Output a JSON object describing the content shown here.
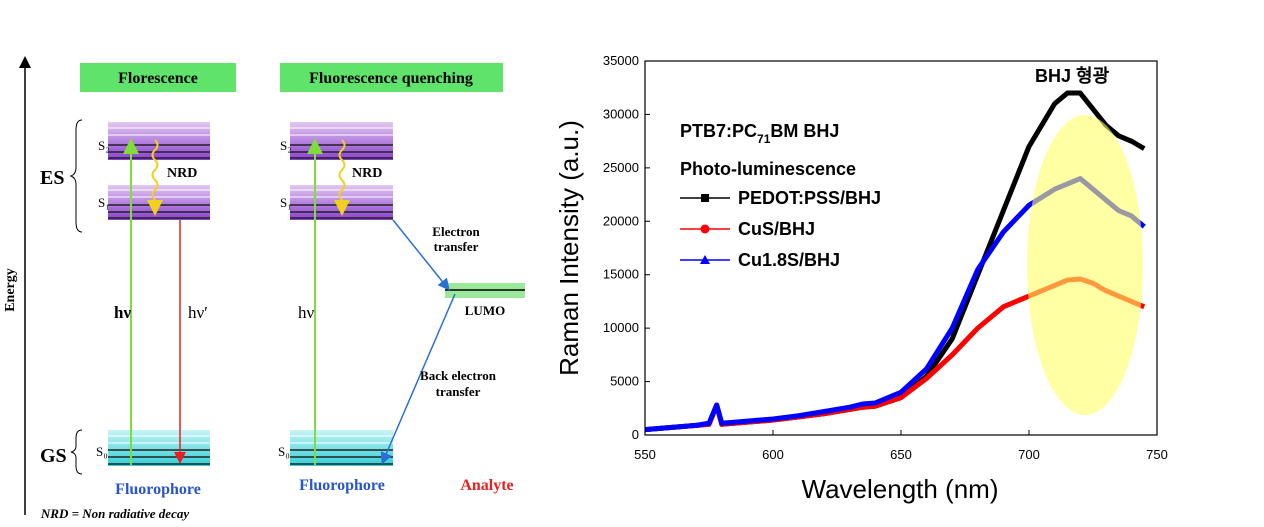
{
  "diagram": {
    "panel_titles": [
      "Florescence",
      "Fluorescence quenching"
    ],
    "energy_axis": "Energy",
    "states": {
      "excited": "ES",
      "ground": "GS"
    },
    "levels": {
      "s2": "S₂",
      "s1": "S₁",
      "s0": "S₀"
    },
    "nrd": "NRD",
    "absorption": "hν",
    "emission": "hν′",
    "electron_transfer": [
      "Electron",
      "transfer"
    ],
    "lumo": "LUMO",
    "back_transfer": [
      "Back electron",
      "transfer"
    ],
    "fluorophore": "Fluorophore",
    "analyte": "Analyte",
    "footnote": "NRD = Non radiative decay"
  },
  "chart_data": {
    "type": "line",
    "xlabel": "Wavelength (nm)",
    "ylabel": "Raman Intensity (a.u.)",
    "annotations": [
      "BHJ 형광",
      "Photo-luminescence"
    ],
    "label_parts": [
      "PTB7:PC",
      "71",
      "BM BHJ"
    ],
    "x": [
      550,
      560,
      570,
      575,
      578,
      580,
      590,
      600,
      610,
      620,
      630,
      635,
      640,
      650,
      660,
      670,
      680,
      690,
      700,
      710,
      715,
      720,
      725,
      730,
      735,
      740,
      745
    ],
    "series": [
      {
        "name": "PEDOT:PSS/BHJ",
        "color": "#000000",
        "marker": "square",
        "values": [
          500,
          700,
          900,
          1000,
          2800,
          1000,
          1200,
          1400,
          1700,
          2000,
          2400,
          2600,
          2700,
          3500,
          5500,
          9000,
          15000,
          21000,
          27000,
          31000,
          32000,
          32000,
          30500,
          29000,
          28000,
          27500,
          26800
        ]
      },
      {
        "name": "CuS/BHJ",
        "color": "#ff0000",
        "marker": "circle",
        "values": [
          500,
          700,
          900,
          1000,
          2800,
          1000,
          1200,
          1400,
          1700,
          2000,
          2400,
          2600,
          2700,
          3500,
          5300,
          7500,
          10000,
          12000,
          13000,
          14000,
          14500,
          14600,
          14200,
          13500,
          13000,
          12500,
          12000
        ]
      },
      {
        "name": "Cu1.8S/BHJ",
        "color": "#0000ff",
        "marker": "triangle",
        "values": [
          500,
          700,
          900,
          1100,
          2800,
          1100,
          1300,
          1500,
          1800,
          2200,
          2600,
          2900,
          3000,
          4000,
          6200,
          10000,
          15500,
          19000,
          21500,
          23000,
          23500,
          24000,
          23000,
          22000,
          21000,
          20500,
          19500
        ]
      }
    ],
    "xlim": [
      550,
      750
    ],
    "xticks": [
      550,
      600,
      650,
      700,
      750
    ],
    "ylim": [
      0,
      35000
    ],
    "yticks": [
      0,
      5000,
      10000,
      15000,
      20000,
      25000,
      30000,
      35000
    ],
    "legend": "upper left",
    "highlight_color": "#ffff66"
  }
}
